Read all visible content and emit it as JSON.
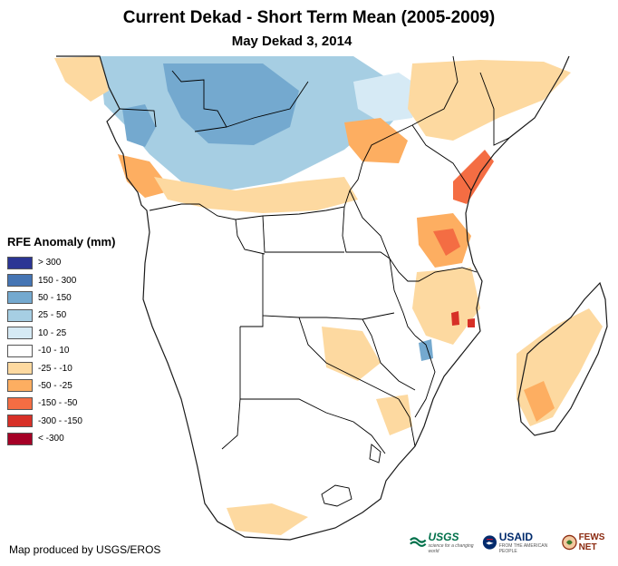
{
  "header": {
    "title": "Current Dekad - Short Term Mean (2005-2009)",
    "subtitle": "May Dekad 3, 2014"
  },
  "legend": {
    "title": "RFE Anomaly (mm)",
    "items": [
      {
        "label": "> 300",
        "color": "#2b3594"
      },
      {
        "label": "150 - 300",
        "color": "#4575b4"
      },
      {
        "label": "50 - 150",
        "color": "#74a9cf"
      },
      {
        "label": "25 - 50",
        "color": "#a6cee3"
      },
      {
        "label": "10 - 25",
        "color": "#d6eaf5"
      },
      {
        "label": "-10 - 10",
        "color": "#ffffff"
      },
      {
        "label": "-25 - -10",
        "color": "#fdd9a0"
      },
      {
        "label": "-50 - -25",
        "color": "#fdae61"
      },
      {
        "label": "-150 - -50",
        "color": "#f46d43"
      },
      {
        "label": "-300 - -150",
        "color": "#d73027"
      },
      {
        "label": "< -300",
        "color": "#a50026"
      }
    ]
  },
  "footer": {
    "credit": "Map produced by USGS/EROS",
    "logos": {
      "usgs": "USGS",
      "usgs_tagline": "science for a changing world",
      "usaid": "USAID",
      "usaid_tagline": "FROM THE AMERICAN PEOPLE",
      "fews": "FEWS NET"
    }
  },
  "colors": {
    "border": "#000000",
    "coast": "#1a1a1a"
  }
}
